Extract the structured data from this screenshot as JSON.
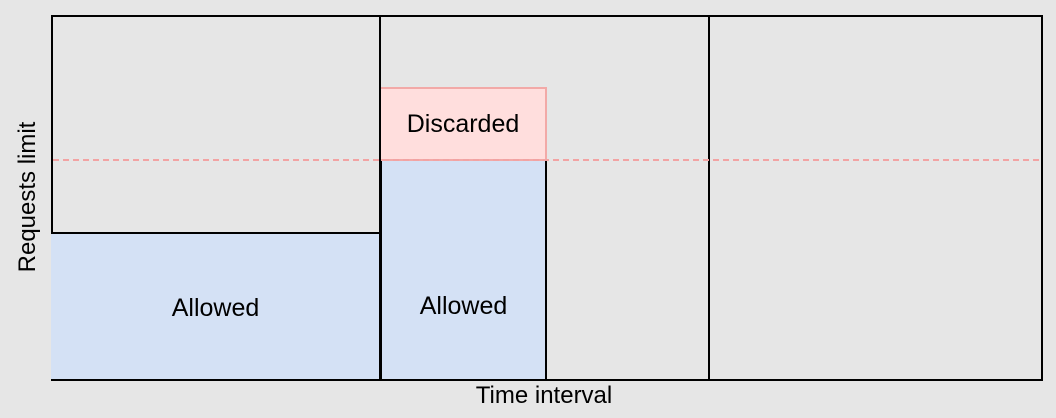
{
  "diagram": {
    "axis_labels": {
      "y": "Requests limit",
      "x": "Time interval"
    },
    "blocks": {
      "allowed_first": "Allowed",
      "allowed_second": "Allowed",
      "discarded": "Discarded"
    },
    "colors": {
      "background": "#e6e6e6",
      "allowed_fill": "#d4e1f5",
      "discarded_fill": "#ffdedd",
      "discarded_border": "#f2a9a7",
      "limit_line": "#f2a3a3"
    }
  }
}
